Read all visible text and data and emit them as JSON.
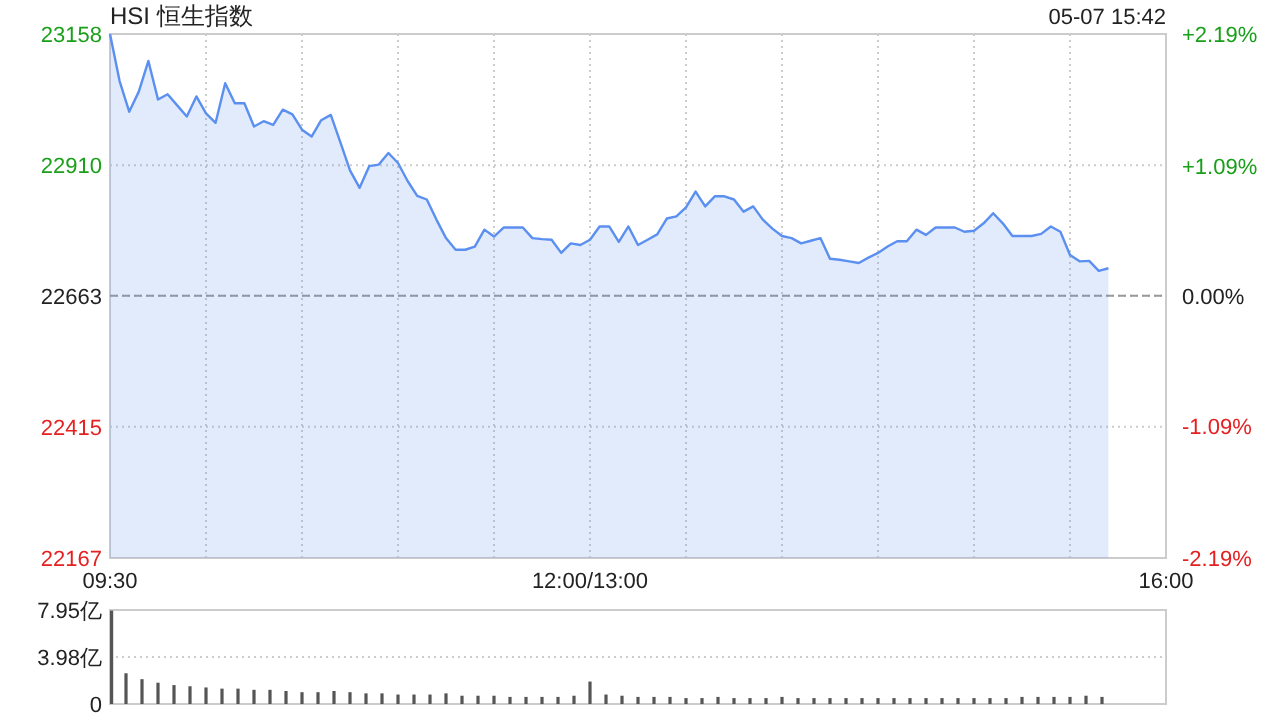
{
  "chart_data": [
    {
      "type": "area",
      "title": "HSI 恒生指数",
      "annotations": [
        "05-07 15:42"
      ],
      "color": "#5b8ff0",
      "categories": [
        "09:30",
        null,
        null,
        null,
        null,
        null,
        null,
        null,
        null,
        null,
        null,
        null,
        null,
        null,
        null,
        null,
        null,
        null,
        null,
        null,
        null,
        null,
        null,
        null,
        null,
        null,
        null,
        null,
        null,
        null,
        null,
        null,
        null,
        null,
        null,
        null,
        null,
        null,
        null,
        null,
        null,
        null,
        null,
        null,
        null,
        null,
        null,
        null,
        null,
        null,
        "12:00/13:00",
        null,
        null,
        null,
        null,
        null,
        null,
        null,
        null,
        null,
        null,
        null,
        null,
        null,
        null,
        null,
        null,
        null,
        null,
        null,
        null,
        null,
        null,
        null,
        null,
        null,
        null,
        null,
        null,
        null,
        null,
        null,
        null,
        null,
        null,
        null,
        null,
        null,
        null,
        null,
        null,
        null,
        null,
        null,
        null,
        null,
        null,
        null,
        null,
        null,
        null,
        null,
        null,
        null,
        null,
        null,
        null,
        null,
        null,
        null,
        "16:00"
      ],
      "values": [
        23158,
        23069,
        23011,
        23049,
        23107,
        23034,
        23044,
        23023,
        23002,
        23040,
        23008,
        22990,
        23065,
        23027,
        23027,
        22983,
        22993,
        22986,
        23015,
        23006,
        22977,
        22964,
        22995,
        23005,
        22953,
        22900,
        22867,
        22908,
        22911,
        22933,
        22914,
        22880,
        22852,
        22845,
        22807,
        22772,
        22750,
        22750,
        22756,
        22788,
        22775,
        22792,
        22792,
        22792,
        22772,
        22770,
        22769,
        22744,
        22762,
        22759,
        22769,
        22794,
        22794,
        22765,
        22794,
        22759,
        22769,
        22779,
        22809,
        22813,
        22830,
        22860,
        22832,
        22851,
        22851,
        22845,
        22822,
        22832,
        22807,
        22790,
        22776,
        22772,
        22762,
        22767,
        22772,
        22733,
        22731,
        22728,
        22725,
        22735,
        22744,
        22756,
        22766,
        22766,
        22788,
        22778,
        22792,
        22792,
        22792,
        22784,
        22786,
        22800,
        22819,
        22800,
        22776,
        22776,
        22776,
        22780,
        22794,
        22784,
        22740,
        22728,
        22729,
        22710,
        22715,
        null,
        null,
        null,
        null,
        null,
        null
      ],
      "ylim": [
        22167,
        23158
      ],
      "yticks": [
        22167,
        22415,
        22663,
        22910,
        23158
      ],
      "y2lim": [
        -2.19,
        2.19
      ],
      "y2ticks": [
        {
          "value": -2.19,
          "label": "-2.19%"
        },
        {
          "value": -1.09,
          "label": "-1.09%"
        },
        {
          "value": 0,
          "label": "0.00%"
        },
        {
          "value": 1.09,
          "label": "+1.09%"
        },
        {
          "value": 2.19,
          "label": "+2.19%"
        }
      ],
      "ref_lines": [
        {
          "axis": "y",
          "value": 22663,
          "line_style": "dashed",
          "color": "#999999"
        }
      ],
      "grid": true
    },
    {
      "type": "bar",
      "color": "#555555",
      "tick_labels": "y",
      "grid": "y",
      "categories": [
        null,
        null,
        null,
        null,
        null,
        null,
        null,
        null,
        null,
        null,
        null,
        null,
        null,
        null,
        null,
        null,
        null,
        null,
        null,
        null,
        null,
        null,
        null,
        null,
        null,
        null,
        null,
        null,
        null,
        null,
        null,
        null,
        null,
        null,
        null,
        null,
        null,
        null,
        null,
        null,
        null,
        null,
        null,
        null,
        null,
        null,
        null,
        null,
        null,
        null,
        null,
        null,
        null,
        null,
        null,
        null,
        null,
        null,
        null,
        null,
        null,
        null,
        null,
        null,
        null,
        null,
        null
      ],
      "values": [
        7.9,
        2.6,
        2.1,
        1.8,
        1.6,
        1.5,
        1.4,
        1.3,
        1.3,
        1.2,
        1.2,
        1.1,
        1.0,
        1.0,
        1.1,
        1.0,
        0.9,
        0.9,
        0.8,
        0.8,
        0.8,
        0.9,
        0.7,
        0.7,
        0.7,
        0.6,
        0.6,
        0.6,
        0.6,
        0.7,
        1.9,
        0.8,
        0.7,
        0.6,
        0.6,
        0.6,
        0.5,
        0.5,
        0.6,
        0.5,
        0.5,
        0.5,
        0.6,
        0.5,
        0.5,
        0.5,
        0.5,
        0.5,
        0.5,
        0.5,
        0.5,
        0.5,
        0.5,
        0.5,
        0.5,
        0.5,
        0.5,
        0.6,
        0.6,
        0.6,
        0.6,
        0.7,
        0.6,
        null,
        null,
        null,
        null
      ],
      "ylim": [
        0,
        7.95
      ],
      "yticks": [
        0,
        {
          "value": 3.98,
          "label": "3.98亿"
        },
        {
          "value": 7.95,
          "label": "7.95亿"
        }
      ]
    }
  ]
}
